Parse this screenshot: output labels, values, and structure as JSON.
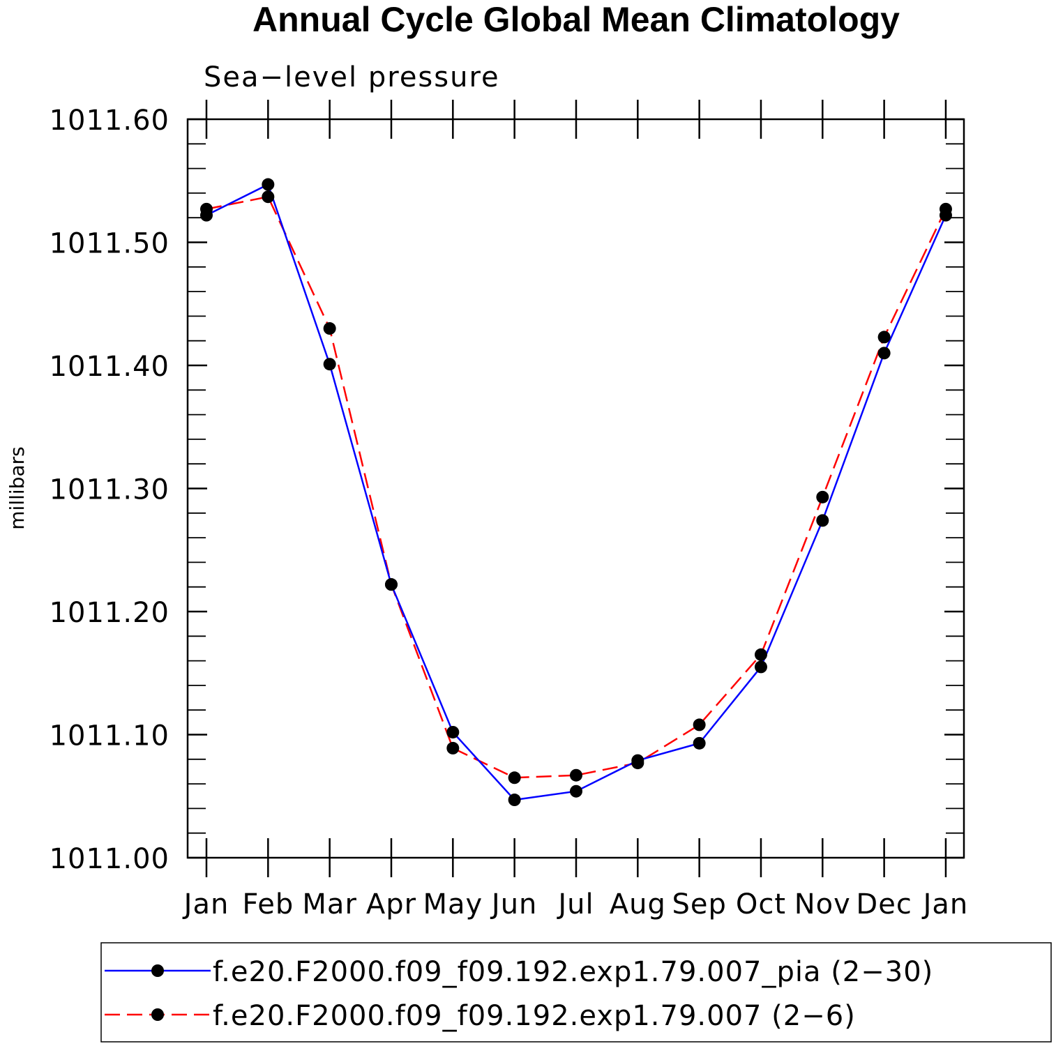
{
  "chart_data": {
    "type": "line",
    "title": "Annual Cycle Global Mean Climatology",
    "subtitle": "Sea−level pressure",
    "ylabel": "millibars",
    "xlabel": "",
    "categories": [
      "Jan",
      "Feb",
      "Mar",
      "Apr",
      "May",
      "Jun",
      "Jul",
      "Aug",
      "Sep",
      "Oct",
      "Nov",
      "Dec",
      "Jan"
    ],
    "ylim": [
      1011.0,
      1011.6
    ],
    "yticks": [
      "1011.00",
      "1011.10",
      "1011.20",
      "1011.30",
      "1011.40",
      "1011.50",
      "1011.60"
    ],
    "legend_position": "bottom",
    "grid": false,
    "series": [
      {
        "name": "f.e20.F2000.f09_f09.192.exp1.79.007_pia (2−30)",
        "color": "#0000ff",
        "line_style": "solid",
        "marker": "filled-circle",
        "values": [
          1011.522,
          1011.547,
          1011.401,
          1011.222,
          1011.102,
          1011.047,
          1011.054,
          1011.079,
          1011.093,
          1011.155,
          1011.274,
          1011.41,
          1011.522
        ]
      },
      {
        "name": "f.e20.F2000.f09_f09.192.exp1.79.007 (2−6)",
        "color": "#ff0000",
        "line_style": "dashed",
        "marker": "filled-circle",
        "values": [
          1011.527,
          1011.537,
          1011.43,
          1011.222,
          1011.089,
          1011.065,
          1011.067,
          1011.077,
          1011.108,
          1011.165,
          1011.293,
          1011.423,
          1011.527
        ]
      }
    ]
  }
}
